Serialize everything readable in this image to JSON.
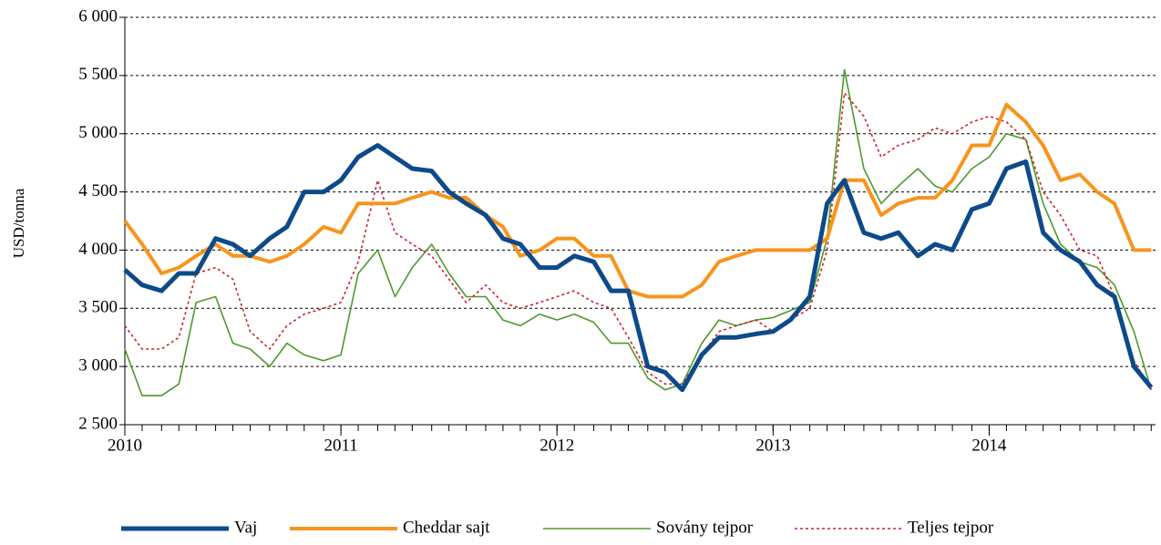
{
  "chart_data": {
    "type": "line",
    "y_label": "USD/tonna",
    "x": [
      2010,
      2010.08,
      2010.17,
      2010.25,
      2010.33,
      2010.42,
      2010.5,
      2010.58,
      2010.67,
      2010.75,
      2010.83,
      2010.92,
      2011,
      2011.08,
      2011.17,
      2011.25,
      2011.33,
      2011.42,
      2011.5,
      2011.58,
      2011.67,
      2011.75,
      2011.83,
      2011.92,
      2012,
      2012.08,
      2012.17,
      2012.25,
      2012.33,
      2012.42,
      2012.5,
      2012.58,
      2012.67,
      2012.75,
      2012.83,
      2012.92,
      2013,
      2013.08,
      2013.17,
      2013.25,
      2013.33,
      2013.42,
      2013.5,
      2013.58,
      2013.67,
      2013.75,
      2013.83,
      2013.92,
      2014,
      2014.08,
      2014.17,
      2014.25,
      2014.33,
      2014.42,
      2014.5,
      2014.58,
      2014.67,
      2014.75
    ],
    "xlim": [
      2010,
      2014.77
    ],
    "xticks": [
      2010,
      2011,
      2012,
      2013,
      2014
    ],
    "ylim": [
      2500,
      6000
    ],
    "yticks": [
      {
        "value": 2500,
        "label": "2 500"
      },
      {
        "value": 3000,
        "label": "3 000"
      },
      {
        "value": 3500,
        "label": "3 500"
      },
      {
        "value": 4000,
        "label": "4 000"
      },
      {
        "value": 4500,
        "label": "4 500"
      },
      {
        "value": 5000,
        "label": "5 000"
      },
      {
        "value": 5500,
        "label": "5 500"
      },
      {
        "value": 6000,
        "label": "6 000"
      }
    ],
    "grid": true,
    "legend": "bottom",
    "series": [
      {
        "name": "Vaj",
        "color": "#0d4a8a",
        "linestyle": "solid",
        "values": [
          3830,
          3700,
          3650,
          3800,
          3800,
          4100,
          4050,
          3950,
          4100,
          4200,
          4500,
          4500,
          4600,
          4800,
          4900,
          4800,
          4700,
          4680,
          4500,
          4400,
          4300,
          4100,
          4050,
          3850,
          3850,
          3950,
          3900,
          3650,
          3650,
          3000,
          2950,
          2800,
          3100,
          3250,
          3250,
          3280,
          3300,
          3400,
          3600,
          4400,
          4600,
          4150,
          4100,
          4150,
          3950,
          4050,
          4000,
          4350,
          4400,
          4700,
          4760,
          4150,
          4000,
          3900,
          3700,
          3600,
          3000,
          2820
        ]
      },
      {
        "name": "Cheddar sajt",
        "color": "#f7941d",
        "linestyle": "solid",
        "values": [
          4250,
          4050,
          3800,
          3850,
          3950,
          4050,
          3950,
          3950,
          3900,
          3950,
          4050,
          4200,
          4150,
          4400,
          4400,
          4400,
          4450,
          4500,
          4450,
          4450,
          4300,
          4200,
          3950,
          4000,
          4100,
          4100,
          3950,
          3950,
          3650,
          3600,
          3600,
          3600,
          3700,
          3900,
          3950,
          4000,
          4000,
          4000,
          4000,
          4100,
          4600,
          4600,
          4300,
          4400,
          4450,
          4450,
          4600,
          4900,
          4900,
          5250,
          5100,
          4900,
          4600,
          4650,
          4500,
          4400,
          4000,
          4000
        ]
      },
      {
        "name": "Sovány tejpor",
        "color": "#4d9a2a",
        "linestyle": "solid",
        "values": [
          3150,
          2750,
          2750,
          2850,
          3550,
          3600,
          3200,
          3150,
          3000,
          3200,
          3100,
          3050,
          3100,
          3800,
          4000,
          3600,
          3850,
          4050,
          3800,
          3600,
          3600,
          3400,
          3350,
          3450,
          3400,
          3450,
          3380,
          3200,
          3200,
          2900,
          2800,
          2850,
          3200,
          3400,
          3350,
          3400,
          3420,
          3480,
          3550,
          4100,
          5550,
          4700,
          4400,
          4550,
          4700,
          4550,
          4500,
          4700,
          4800,
          5000,
          4950,
          4400,
          4050,
          3900,
          3850,
          3700,
          3300,
          2800
        ]
      },
      {
        "name": "Teljes tejpor",
        "color": "#d0202e",
        "linestyle": "dotted",
        "values": [
          3350,
          3150,
          3150,
          3250,
          3800,
          3850,
          3750,
          3300,
          3150,
          3350,
          3450,
          3500,
          3550,
          3900,
          4600,
          4150,
          4050,
          3950,
          3750,
          3550,
          3700,
          3550,
          3500,
          3550,
          3600,
          3650,
          3550,
          3500,
          3250,
          2950,
          2850,
          2850,
          3100,
          3300,
          3350,
          3400,
          3300,
          3400,
          3500,
          4000,
          5350,
          5150,
          4800,
          4900,
          4950,
          5050,
          5000,
          5100,
          5150,
          5100,
          4950,
          4500,
          4300,
          4000,
          3950,
          3600,
          3050,
          2800
        ]
      }
    ]
  }
}
